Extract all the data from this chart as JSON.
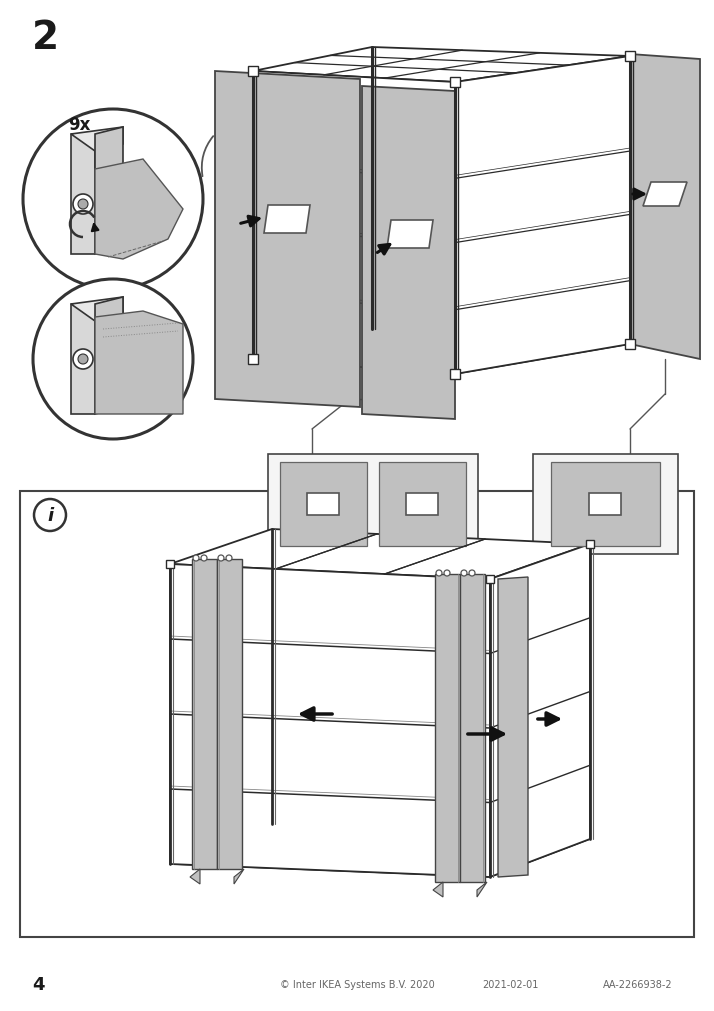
{
  "page_number": "4",
  "step_number": "2",
  "copyright_text": "© Inter IKEA Systems B.V. 2020",
  "date_text": "2021-02-01",
  "article_text": "AA-2266938-2",
  "bg_color": "#ffffff",
  "line_color": "#1a1a1a",
  "curtain_fill": "#c0c0c0",
  "curtain_stroke": "#444444",
  "frame_color": "#2a2a2a",
  "arrow_color": "#1a1a1a"
}
